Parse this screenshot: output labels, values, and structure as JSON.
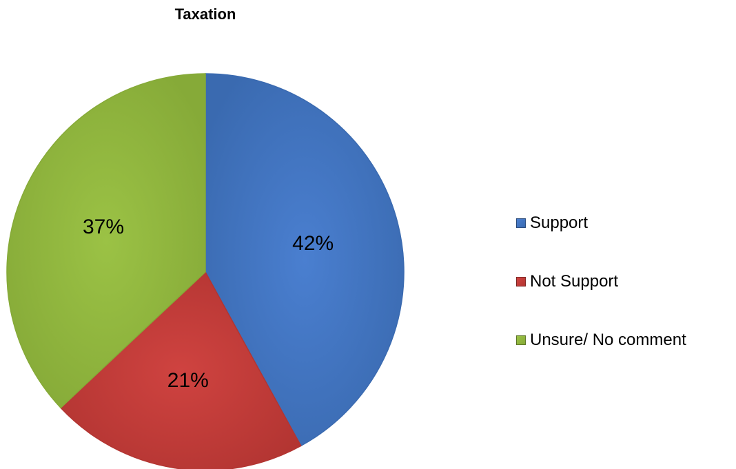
{
  "chart_data": {
    "type": "pie",
    "title": "Taxation",
    "slices": [
      {
        "label": "Support",
        "value": 42,
        "display": "42%",
        "color": "#4a7fd0",
        "dark": "#3a6ab0"
      },
      {
        "label": "Not Support",
        "value": 21,
        "display": "21%",
        "color": "#cf4340",
        "dark": "#b33532"
      },
      {
        "label": "Unsure/ No comment",
        "value": 37,
        "display": "37%",
        "color": "#9bc245",
        "dark": "#86aa38"
      }
    ],
    "legend_position": "right"
  }
}
